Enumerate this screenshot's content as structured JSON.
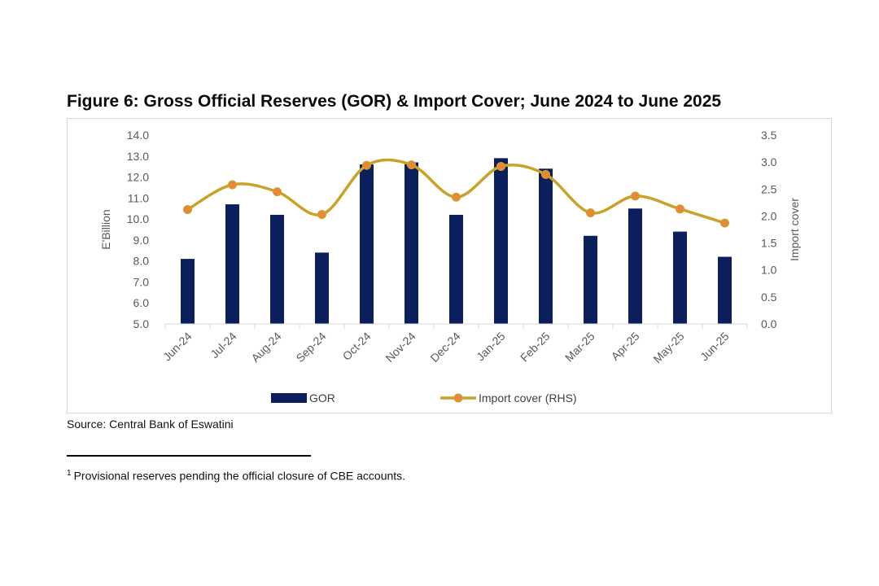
{
  "figure": {
    "title": "Figure 6: Gross Official Reserves (GOR) & Import Cover; June 2024 to June 2025",
    "source": "Source: Central Bank of Eswatini",
    "footnote_marker": "1",
    "footnote_text": "Provisional reserves pending the official closure of CBE accounts."
  },
  "chart_data": {
    "type": "bar",
    "categories": [
      "Jun-24",
      "Jul-24",
      "Aug-24",
      "Sep-24",
      "Oct-24",
      "Nov-24",
      "Dec-24",
      "Jan-25",
      "Feb-25",
      "Mar-25",
      "Apr-25",
      "May-25",
      "Jun-25"
    ],
    "series": [
      {
        "name": "GOR",
        "type": "bar",
        "axis": "left",
        "color": "#0b1f5c",
        "values": [
          8.1,
          10.7,
          10.2,
          8.4,
          12.6,
          12.7,
          10.2,
          12.9,
          12.4,
          9.2,
          10.5,
          9.4,
          8.2
        ]
      },
      {
        "name": "Import cover (RHS)",
        "type": "line",
        "axis": "right",
        "color": "#c9a227",
        "marker_color": "#e8893a",
        "values": [
          2.12,
          2.58,
          2.45,
          2.03,
          2.94,
          2.95,
          2.35,
          2.92,
          2.77,
          2.06,
          2.37,
          2.13,
          1.87
        ]
      }
    ],
    "ylabel": "E'Billion",
    "y2label": "Import cover",
    "ylim": [
      5.0,
      14.0
    ],
    "yticks": [
      "5.0",
      "6.0",
      "7.0",
      "8.0",
      "9.0",
      "10.0",
      "11.0",
      "12.0",
      "13.0",
      "14.0"
    ],
    "y2lim": [
      0.0,
      3.5
    ],
    "y2ticks": [
      "0.0",
      "0.5",
      "1.0",
      "1.5",
      "2.0",
      "2.5",
      "3.0",
      "3.5"
    ],
    "legend_position": "bottom",
    "grid": false
  }
}
